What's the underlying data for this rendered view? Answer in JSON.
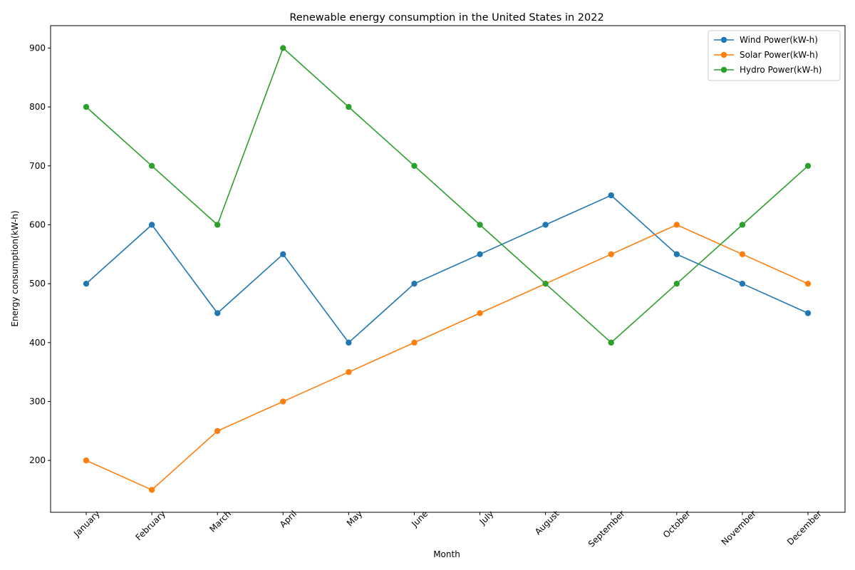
{
  "chart_data": {
    "type": "line",
    "title": "Renewable energy consumption in the United States in 2022",
    "xlabel": "Month",
    "ylabel": "Energy consumption(kW-h)",
    "categories": [
      "January",
      "February",
      "March",
      "April",
      "May",
      "June",
      "July",
      "August",
      "September",
      "October",
      "November",
      "December"
    ],
    "ylim": [
      112,
      938
    ],
    "yticks": [
      200,
      300,
      400,
      500,
      600,
      700,
      800,
      900
    ],
    "grid": false,
    "legend_position": "top-right",
    "series": [
      {
        "name": "Wind Power(kW-h)",
        "color": "#1f77b4",
        "values": [
          500,
          600,
          450,
          550,
          400,
          500,
          550,
          600,
          650,
          550,
          500,
          450
        ]
      },
      {
        "name": "Solar Power(kW-h)",
        "color": "#ff7f0e",
        "values": [
          200,
          150,
          250,
          300,
          350,
          400,
          450,
          500,
          550,
          600,
          550,
          500
        ]
      },
      {
        "name": "Hydro Power(kW-h)",
        "color": "#2ca02c",
        "values": [
          800,
          700,
          600,
          900,
          800,
          700,
          600,
          500,
          400,
          500,
          600,
          700
        ]
      }
    ]
  }
}
